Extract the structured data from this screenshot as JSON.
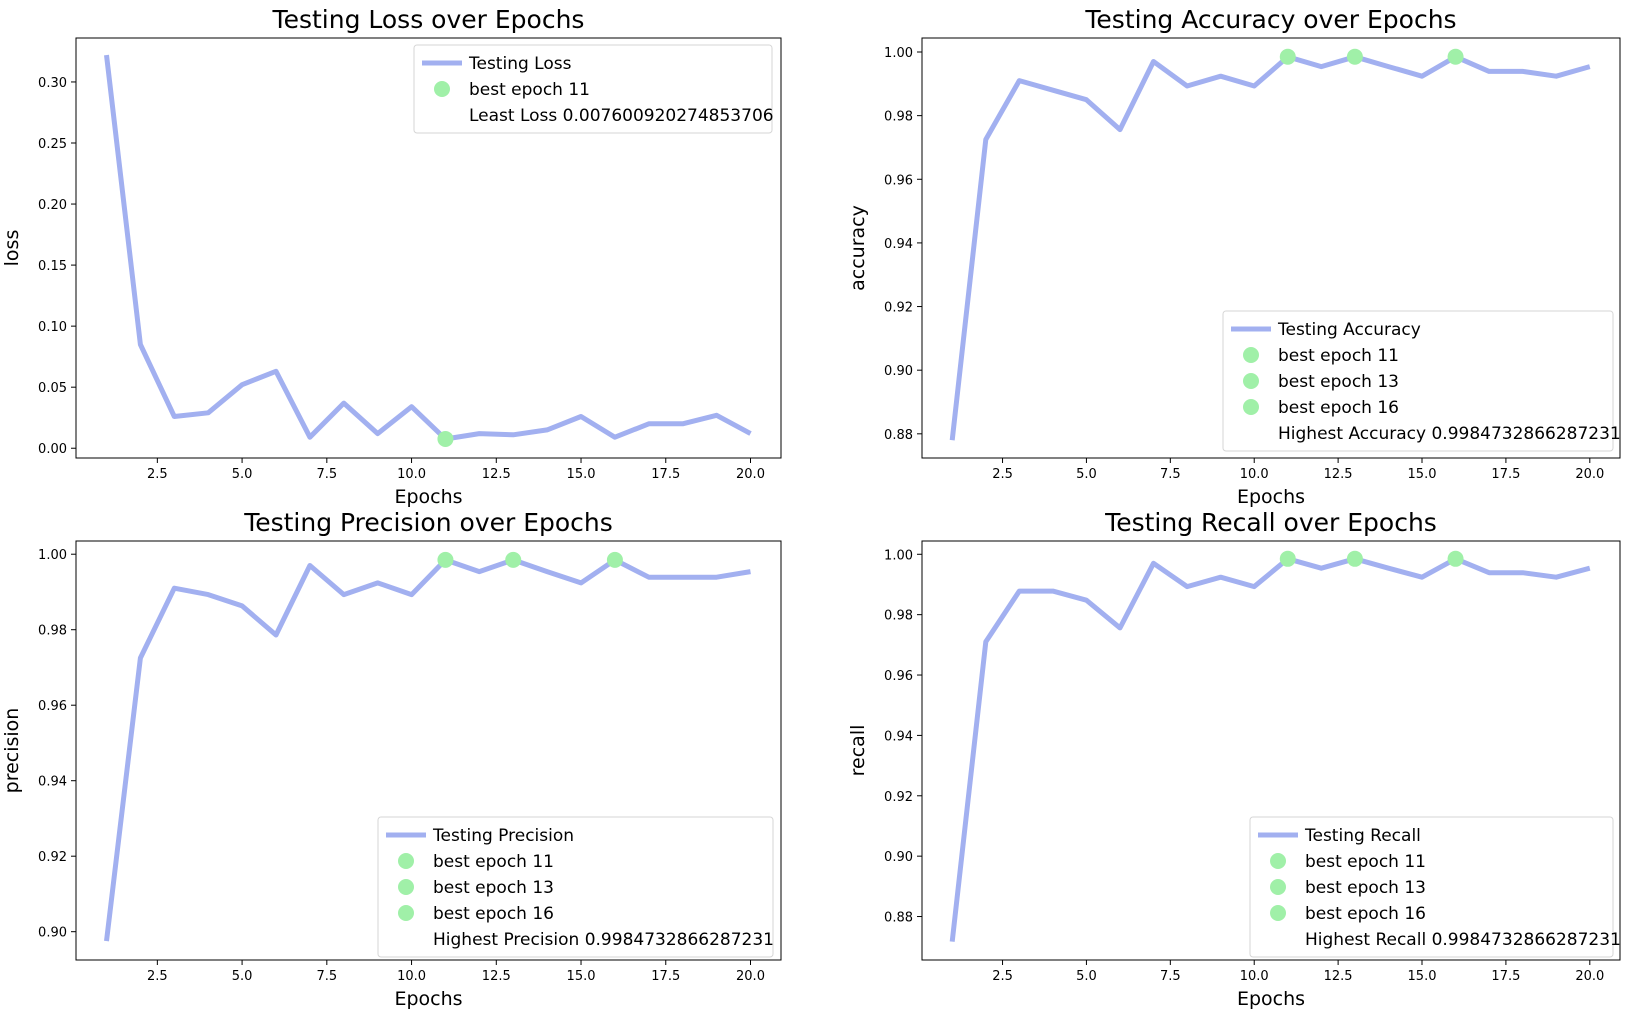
{
  "colors": {
    "line": "#a2b0f0",
    "marker": "#a0f0a8",
    "axis": "#000000",
    "background": "#ffffff"
  },
  "chart_data": [
    {
      "type": "line",
      "title": "Testing Loss over Epochs",
      "xlabel": "Epochs",
      "ylabel": "loss",
      "xlim": [
        0.1,
        20.9
      ],
      "ylim": [
        -0.008,
        0.336
      ],
      "xticks": [
        2.5,
        5.0,
        7.5,
        10.0,
        12.5,
        15.0,
        17.5,
        20.0
      ],
      "xtick_labels": [
        "2.5",
        "5.0",
        "7.5",
        "10.0",
        "12.5",
        "15.0",
        "17.5",
        "20.0"
      ],
      "yticks": [
        0.0,
        0.05,
        0.1,
        0.15,
        0.2,
        0.25,
        0.3
      ],
      "ytick_labels": [
        "0.00",
        "0.05",
        "0.10",
        "0.15",
        "0.20",
        "0.25",
        "0.30"
      ],
      "grid": false,
      "legend_position": "upper right",
      "series": [
        {
          "name": "Testing Loss",
          "x": [
            1,
            2,
            3,
            4,
            5,
            6,
            7,
            8,
            9,
            10,
            11,
            12,
            13,
            14,
            15,
            16,
            17,
            18,
            19,
            20
          ],
          "y": [
            0.322,
            0.085,
            0.026,
            0.029,
            0.052,
            0.063,
            0.009,
            0.037,
            0.012,
            0.034,
            0.0076,
            0.012,
            0.011,
            0.015,
            0.026,
            0.009,
            0.02,
            0.02,
            0.027,
            0.012
          ]
        }
      ],
      "best_points": [
        {
          "label": "best epoch 11",
          "x": 11,
          "y": 0.0076
        }
      ],
      "legend_note": "Least Loss 0.007600920274853706"
    },
    {
      "type": "line",
      "title": "Testing Accuracy over Epochs",
      "xlabel": "Epochs",
      "ylabel": "accuracy",
      "xlim": [
        0.1,
        20.9
      ],
      "ylim": [
        0.8724,
        1.0044
      ],
      "xticks": [
        2.5,
        5.0,
        7.5,
        10.0,
        12.5,
        15.0,
        17.5,
        20.0
      ],
      "xtick_labels": [
        "2.5",
        "5.0",
        "7.5",
        "10.0",
        "12.5",
        "15.0",
        "17.5",
        "20.0"
      ],
      "yticks": [
        0.88,
        0.9,
        0.92,
        0.94,
        0.96,
        0.98,
        1.0
      ],
      "ytick_labels": [
        "0.88",
        "0.90",
        "0.92",
        "0.94",
        "0.96",
        "0.98",
        "1.00"
      ],
      "grid": false,
      "legend_position": "lower right",
      "series": [
        {
          "name": "Testing Accuracy",
          "x": [
            1,
            2,
            3,
            4,
            5,
            6,
            7,
            8,
            9,
            10,
            11,
            12,
            13,
            14,
            15,
            16,
            17,
            18,
            19,
            20
          ],
          "y": [
            0.878,
            0.9725,
            0.991,
            0.988,
            0.985,
            0.9756,
            0.997,
            0.9893,
            0.9924,
            0.9893,
            0.9985,
            0.9954,
            0.9985,
            0.9954,
            0.9924,
            0.9985,
            0.9939,
            0.9939,
            0.9924,
            0.9954
          ]
        }
      ],
      "best_points": [
        {
          "label": "best epoch 11",
          "x": 11,
          "y": 0.9985
        },
        {
          "label": "best epoch 13",
          "x": 13,
          "y": 0.9985
        },
        {
          "label": "best epoch 16",
          "x": 16,
          "y": 0.9985
        }
      ],
      "legend_note": "Highest Accuracy 0.9984732866287231"
    },
    {
      "type": "line",
      "title": "Testing Precision over Epochs",
      "xlabel": "Epochs",
      "ylabel": "precision",
      "xlim": [
        0.1,
        20.9
      ],
      "ylim": [
        0.8925,
        1.0035
      ],
      "xticks": [
        2.5,
        5.0,
        7.5,
        10.0,
        12.5,
        15.0,
        17.5,
        20.0
      ],
      "xtick_labels": [
        "2.5",
        "5.0",
        "7.5",
        "10.0",
        "12.5",
        "15.0",
        "17.5",
        "20.0"
      ],
      "yticks": [
        0.9,
        0.92,
        0.94,
        0.96,
        0.98,
        1.0
      ],
      "ytick_labels": [
        "0.90",
        "0.92",
        "0.94",
        "0.96",
        "0.98",
        "1.00"
      ],
      "grid": false,
      "legend_position": "lower right",
      "series": [
        {
          "name": "Testing Precision",
          "x": [
            1,
            2,
            3,
            4,
            5,
            6,
            7,
            8,
            9,
            10,
            11,
            12,
            13,
            14,
            15,
            16,
            17,
            18,
            19,
            20
          ],
          "y": [
            0.8975,
            0.9725,
            0.991,
            0.9893,
            0.9863,
            0.9786,
            0.997,
            0.9893,
            0.9924,
            0.9893,
            0.9985,
            0.9954,
            0.9985,
            0.9954,
            0.9924,
            0.9985,
            0.9939,
            0.9939,
            0.9939,
            0.9954
          ]
        }
      ],
      "best_points": [
        {
          "label": "best epoch 11",
          "x": 11,
          "y": 0.9985
        },
        {
          "label": "best epoch 13",
          "x": 13,
          "y": 0.9985
        },
        {
          "label": "best epoch 16",
          "x": 16,
          "y": 0.9985
        }
      ],
      "legend_note": "Highest Precision 0.9984732866287231"
    },
    {
      "type": "line",
      "title": "Testing Recall over Epochs",
      "xlabel": "Epochs",
      "ylabel": "recall",
      "xlim": [
        0.1,
        20.9
      ],
      "ylim": [
        0.8656,
        1.0044
      ],
      "xticks": [
        2.5,
        5.0,
        7.5,
        10.0,
        12.5,
        15.0,
        17.5,
        20.0
      ],
      "xtick_labels": [
        "2.5",
        "5.0",
        "7.5",
        "10.0",
        "12.5",
        "15.0",
        "17.5",
        "20.0"
      ],
      "yticks": [
        0.88,
        0.9,
        0.92,
        0.94,
        0.96,
        0.98,
        1.0
      ],
      "ytick_labels": [
        "0.88",
        "0.90",
        "0.92",
        "0.94",
        "0.96",
        "0.98",
        "1.00"
      ],
      "grid": false,
      "legend_position": "lower right",
      "series": [
        {
          "name": "Testing Recall",
          "x": [
            1,
            2,
            3,
            4,
            5,
            6,
            7,
            8,
            9,
            10,
            11,
            12,
            13,
            14,
            15,
            16,
            17,
            18,
            19,
            20
          ],
          "y": [
            0.8717,
            0.971,
            0.9878,
            0.9878,
            0.9848,
            0.9756,
            0.997,
            0.9893,
            0.9924,
            0.9893,
            0.9985,
            0.9954,
            0.9985,
            0.9954,
            0.9924,
            0.9985,
            0.9939,
            0.9939,
            0.9924,
            0.9954
          ]
        }
      ],
      "best_points": [
        {
          "label": "best epoch 11",
          "x": 11,
          "y": 0.9985
        },
        {
          "label": "best epoch 13",
          "x": 13,
          "y": 0.9985
        },
        {
          "label": "best epoch 16",
          "x": 16,
          "y": 0.9985
        }
      ],
      "legend_note": "Highest Recall 0.9984732866287231"
    }
  ]
}
